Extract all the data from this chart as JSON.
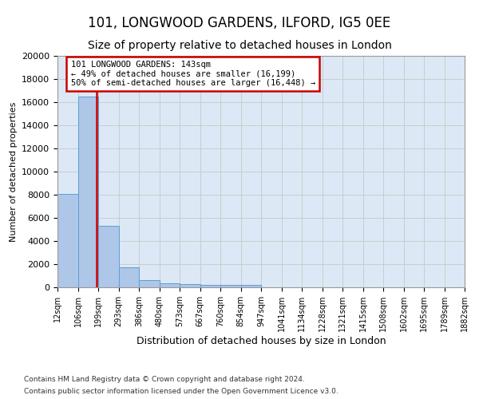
{
  "title": "101, LONGWOOD GARDENS, ILFORD, IG5 0EE",
  "subtitle": "Size of property relative to detached houses in London",
  "xlabel": "Distribution of detached houses by size in London",
  "ylabel": "Number of detached properties",
  "footer_line1": "Contains HM Land Registry data © Crown copyright and database right 2024.",
  "footer_line2": "Contains public sector information licensed under the Open Government Licence v3.0.",
  "bar_values": [
    8100,
    16500,
    5300,
    1750,
    650,
    350,
    270,
    200,
    180,
    200,
    0,
    0,
    0,
    0,
    0,
    0,
    0,
    0,
    0,
    0
  ],
  "bin_edges": [
    0,
    1,
    2,
    3,
    4,
    5,
    6,
    7,
    8,
    9,
    10,
    11,
    12,
    13,
    14,
    15,
    16,
    17,
    18,
    19,
    20
  ],
  "bin_labels": [
    "12sqm",
    "106sqm",
    "199sqm",
    "293sqm",
    "386sqm",
    "480sqm",
    "573sqm",
    "667sqm",
    "760sqm",
    "854sqm",
    "947sqm",
    "1041sqm",
    "1134sqm",
    "1228sqm",
    "1321sqm",
    "1415sqm",
    "1508sqm",
    "1602sqm",
    "1695sqm",
    "1789sqm",
    "1882sqm"
  ],
  "bar_color": "#aec6e8",
  "bar_edge_color": "#5a9fd4",
  "red_line_x": 1.43,
  "annotation_text_line1": "101 LONGWOOD GARDENS: 143sqm",
  "annotation_text_line2": "← 49% of detached houses are smaller (16,199)",
  "annotation_text_line3": "50% of semi-detached houses are larger (16,448) →",
  "annotation_box_color": "#ffffff",
  "annotation_border_color": "#cc0000",
  "ylim": [
    0,
    20000
  ],
  "yticks": [
    0,
    2000,
    4000,
    6000,
    8000,
    10000,
    12000,
    14000,
    16000,
    18000,
    20000
  ],
  "grid_color": "#cccccc",
  "bg_color": "#dce8f5",
  "title_fontsize": 12,
  "subtitle_fontsize": 10
}
